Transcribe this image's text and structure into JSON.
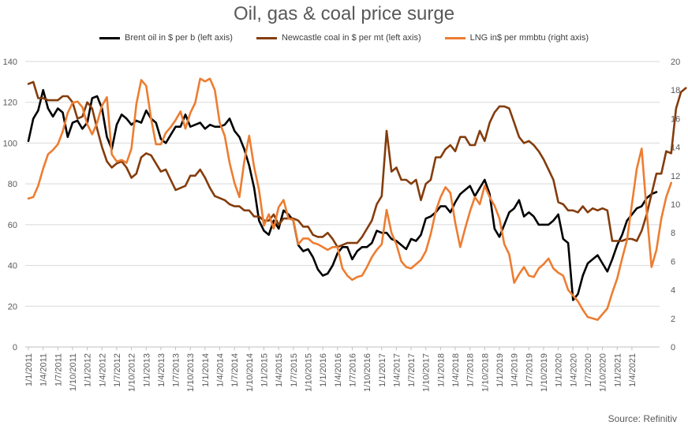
{
  "chart_data": {
    "type": "line",
    "title": "Oil, gas & coal price surge",
    "source": "Source: Refinitiv",
    "left_axis": {
      "min": 0,
      "max": 140,
      "ticks": [
        "0",
        "20",
        "40",
        "60",
        "80",
        "100",
        "120",
        "140"
      ]
    },
    "right_axis": {
      "min": 0,
      "max": 20,
      "ticks": [
        "0",
        "2",
        "4",
        "6",
        "8",
        "10",
        "12",
        "14",
        "16",
        "18",
        "20"
      ]
    },
    "x_tick_labels": [
      "1/1/2011",
      "1/4/2011",
      "1/7/2011",
      "1/10/2011",
      "1/1/2012",
      "1/4/2012",
      "1/7/2012",
      "1/10/2012",
      "1/1/2013",
      "1/4/2013",
      "1/7/2013",
      "1/10/2013",
      "1/1/2014",
      "1/4/2014",
      "1/7/2014",
      "1/10/2014",
      "1/1/2015",
      "1/4/2015",
      "1/7/2015",
      "1/10/2015",
      "1/1/2016",
      "1/4/2016",
      "1/7/2016",
      "1/10/2016",
      "1/1/2017",
      "1/4/2017",
      "1/7/2017",
      "1/10/2017",
      "1/1/2018",
      "1/4/2018",
      "1/7/2018",
      "1/10/2018",
      "1/1/2019",
      "1/4/2019",
      "1/7/2019",
      "1/10/2019",
      "1/1/2020",
      "1/4/2020",
      "1/7/2020",
      "1/10/2020",
      "1/1/2021",
      "1/4/2021"
    ],
    "series": [
      {
        "name": "Brent oil in $ per b (left axis)",
        "axis": "left",
        "color": "#000000",
        "values": [
          101,
          112,
          116,
          126,
          117,
          113,
          117,
          115,
          103,
          110,
          111,
          107,
          110,
          122,
          123,
          117,
          103,
          97,
          109,
          114,
          112,
          109,
          111,
          110,
          116,
          112,
          110,
          102,
          100,
          104,
          108,
          108,
          114,
          108,
          109,
          110,
          107,
          109,
          108,
          108,
          109,
          112,
          106,
          103,
          97,
          89,
          78,
          62,
          57,
          55,
          62,
          58,
          67,
          65,
          62,
          50,
          47,
          48,
          44,
          38,
          35,
          36,
          40,
          46,
          49,
          49,
          43,
          47,
          49,
          49,
          51,
          57,
          56,
          56,
          53,
          52,
          50,
          48,
          53,
          52,
          55,
          63,
          64,
          66,
          69,
          69,
          66,
          71,
          75,
          77,
          79,
          74,
          78,
          82,
          75,
          58,
          54,
          60,
          66,
          68,
          72,
          64,
          66,
          64,
          60,
          60,
          60,
          62,
          65,
          53,
          51,
          23,
          26,
          35,
          41,
          43,
          45,
          41,
          37,
          43,
          50,
          55,
          62,
          65,
          68,
          69,
          73,
          75,
          76
        ]
      },
      {
        "name": "Newcastle coal in $ per mt (left axis)",
        "axis": "left",
        "color": "#843C0C",
        "values": [
          129,
          130,
          122,
          122,
          121,
          121,
          121,
          123,
          123,
          120,
          112,
          113,
          120,
          117,
          107,
          98,
          91,
          88,
          90,
          91,
          88,
          83,
          85,
          93,
          95,
          94,
          90,
          86,
          87,
          82,
          77,
          78,
          79,
          84,
          84,
          87,
          83,
          78,
          74,
          73,
          72,
          70,
          69,
          69,
          67,
          67,
          64,
          64,
          62,
          62,
          65,
          60,
          63,
          63,
          63,
          62,
          59,
          59,
          55,
          54,
          54,
          56,
          53,
          49,
          50,
          51,
          51,
          51,
          54,
          58,
          62,
          70,
          74,
          106,
          86,
          88,
          82,
          82,
          80,
          82,
          72,
          80,
          82,
          93,
          93,
          97,
          99,
          96,
          103,
          103,
          99,
          99,
          106,
          101,
          110,
          115,
          118,
          118,
          117,
          110,
          103,
          100,
          101,
          99,
          96,
          92,
          87,
          82,
          71,
          70,
          67,
          67,
          66,
          69,
          66,
          68,
          67,
          68,
          67,
          52,
          52,
          52,
          53,
          53,
          52,
          57,
          65,
          75,
          85,
          85,
          96,
          95,
          117,
          125,
          127
        ]
      },
      {
        "name": "LNG in$ per mmbtu (right axis)",
        "axis": "right",
        "color": "#ED7D31",
        "values": [
          10.4,
          10.5,
          11.3,
          12.5,
          13.5,
          13.8,
          14.2,
          15.1,
          16.4,
          17.1,
          17.2,
          16.8,
          15.6,
          14.9,
          15.7,
          16.9,
          17.5,
          13.5,
          13.0,
          13.1,
          12.9,
          13.9,
          17.0,
          18.7,
          18.3,
          16.0,
          14.2,
          14.2,
          15.0,
          15.4,
          15.9,
          16.5,
          15.3,
          16.4,
          17.1,
          18.8,
          18.6,
          18.8,
          18.0,
          15.7,
          14.8,
          12.9,
          11.5,
          10.5,
          13.0,
          14.8,
          12.6,
          11.0,
          8.5,
          9.3,
          8.3,
          9.8,
          10.3,
          9.0,
          8.9,
          7.2,
          7.6,
          7.6,
          7.3,
          7.2,
          7.0,
          6.8,
          7.0,
          7.0,
          5.5,
          5.0,
          4.7,
          4.9,
          5.0,
          5.6,
          6.3,
          6.8,
          7.2,
          9.6,
          8.0,
          7.2,
          6.0,
          5.6,
          5.5,
          5.8,
          6.1,
          6.7,
          7.9,
          9.5,
          10.5,
          11.2,
          10.8,
          8.7,
          7.0,
          8.3,
          9.5,
          10.5,
          10.0,
          11.3,
          10.5,
          9.9,
          9.0,
          7.2,
          6.5,
          4.5,
          5.1,
          5.6,
          5.0,
          4.9,
          5.5,
          5.8,
          6.2,
          5.5,
          5.2,
          5.0,
          4.0,
          3.6,
          3.2,
          2.6,
          2.1,
          2.0,
          1.9,
          2.3,
          2.7,
          3.8,
          4.8,
          6.2,
          7.5,
          10.0,
          12.5,
          13.9,
          9.5,
          5.6,
          6.8,
          9.0,
          10.5,
          11.5
        ]
      }
    ]
  }
}
